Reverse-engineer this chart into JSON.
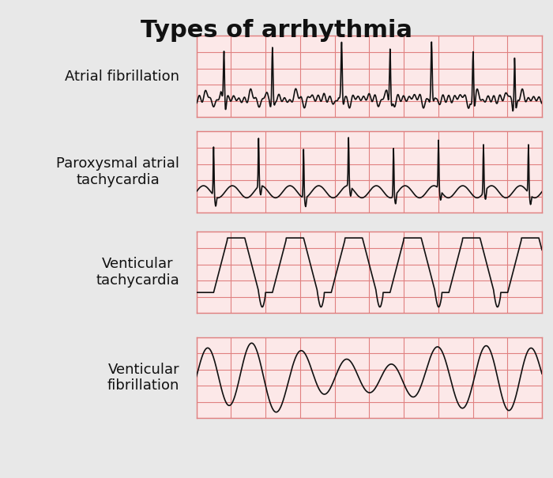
{
  "title": "Types of arrhythmia",
  "title_fontsize": 22,
  "title_fontweight": "bold",
  "background_color": "#e8e8e8",
  "panel_bg": "#fce8e8",
  "grid_color": "#e08080",
  "line_color": "#111111",
  "label_fontsize": 13,
  "labels": [
    "Atrial fibrillation",
    "Paroxysmal atrial\ntachycardia",
    "Venticular\ntachycardia",
    "Venticular\nfibrillation"
  ]
}
